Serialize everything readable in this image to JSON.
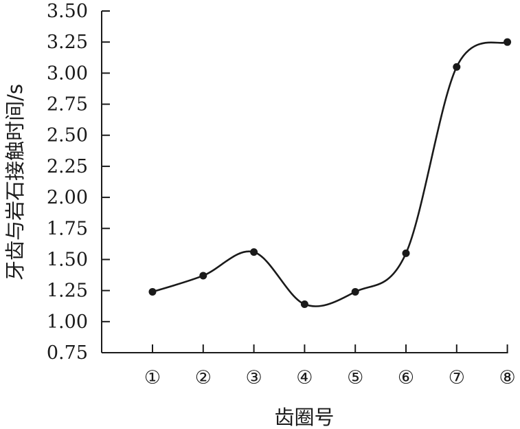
{
  "chart_data": {
    "type": "scatter",
    "xlabel": "齿圈号",
    "ylabel": "牙齿与岩石接触时间/s",
    "categories": [
      "①",
      "②",
      "③",
      "④",
      "⑤",
      "⑥",
      "⑦",
      "⑧"
    ],
    "ytick_labels": [
      "0.75",
      "1.00",
      "1.25",
      "1.50",
      "1.75",
      "2.00",
      "2.25",
      "2.50",
      "2.75",
      "3.00",
      "3.25",
      "3.50"
    ],
    "ylim": [
      0.75,
      3.5
    ],
    "grid": false,
    "series": [
      {
        "values": [
          1.24,
          1.37,
          1.56,
          1.14,
          1.24,
          1.55,
          3.05,
          3.25
        ]
      }
    ],
    "fit_curve": true,
    "colors": {
      "marker": "#1a1a1a",
      "line": "#1a1a1a"
    }
  }
}
